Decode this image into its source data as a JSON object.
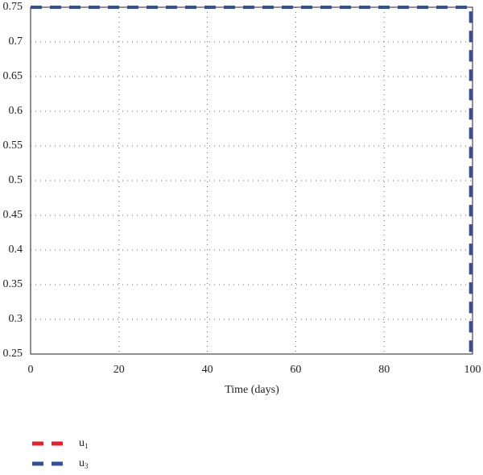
{
  "chart_data": {
    "type": "line",
    "x_label": "Time (days)",
    "x": [
      0,
      99.6,
      99.6
    ],
    "series": [
      {
        "name": "u1",
        "color": "#e8202a",
        "values": [
          0.75,
          0.75,
          0.25
        ]
      },
      {
        "name": "u3",
        "color": "#3050a0",
        "values": [
          0.75,
          0.75,
          0.25
        ]
      }
    ],
    "xlim": [
      0,
      100
    ],
    "xticks": [
      0,
      20,
      40,
      60,
      80,
      100
    ],
    "ylim": [
      0.25,
      0.75
    ],
    "yticks": [
      0.25,
      0.3,
      0.35,
      0.4,
      0.45,
      0.5,
      0.55,
      0.6,
      0.65,
      0.7,
      0.75
    ],
    "grid": true,
    "line_style": "dashed"
  }
}
